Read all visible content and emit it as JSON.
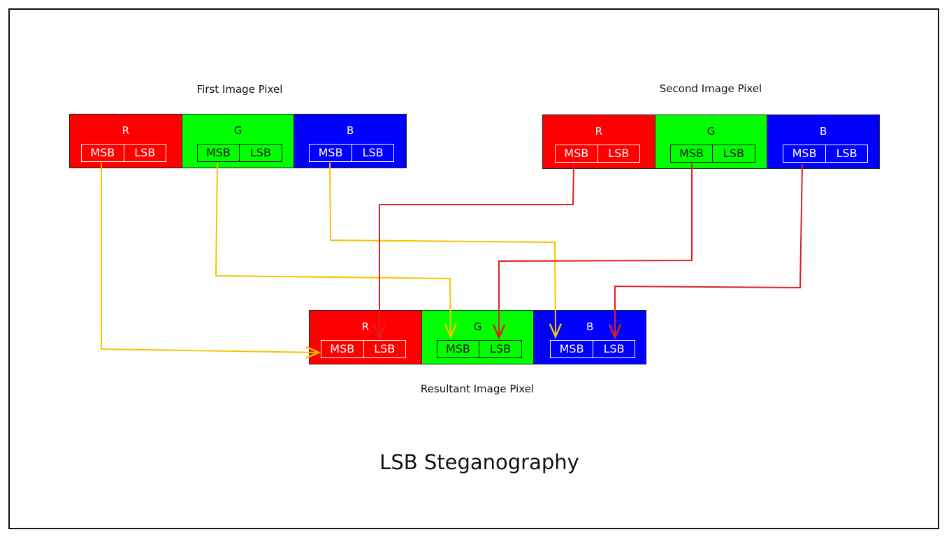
{
  "title": "LSB Steganography",
  "colors": {
    "red": "#ff0000",
    "green": "#00ff00",
    "blue": "#0000ff",
    "yellow_arrow": "#f5c400",
    "red_arrow": "#e02020"
  },
  "pixels": [
    {
      "id": "first",
      "label": "First Image Pixel",
      "channels": [
        {
          "name": "R",
          "msb": "MSB",
          "lsb": "LSB"
        },
        {
          "name": "G",
          "msb": "MSB",
          "lsb": "LSB"
        },
        {
          "name": "B",
          "msb": "MSB",
          "lsb": "LSB"
        }
      ]
    },
    {
      "id": "second",
      "label": "Second Image Pixel",
      "channels": [
        {
          "name": "R",
          "msb": "MSB",
          "lsb": "LSB"
        },
        {
          "name": "G",
          "msb": "MSB",
          "lsb": "LSB"
        },
        {
          "name": "B",
          "msb": "MSB",
          "lsb": "LSB"
        }
      ]
    },
    {
      "id": "result",
      "label": "Resultant Image Pixel",
      "channels": [
        {
          "name": "R",
          "msb": "MSB",
          "lsb": "LSB"
        },
        {
          "name": "G",
          "msb": "MSB",
          "lsb": "LSB"
        },
        {
          "name": "B",
          "msb": "MSB",
          "lsb": "LSB"
        }
      ]
    }
  ],
  "connections": [
    {
      "from": "first.R.MSB",
      "to": "result.R.MSB",
      "color": "yellow"
    },
    {
      "from": "first.G.MSB",
      "to": "result.G.MSB",
      "color": "yellow"
    },
    {
      "from": "first.B.MSB",
      "to": "result.B.MSB",
      "color": "yellow"
    },
    {
      "from": "second.R.MSB",
      "to": "result.R.LSB",
      "color": "red"
    },
    {
      "from": "second.G.MSB",
      "to": "result.G.LSB",
      "color": "red"
    },
    {
      "from": "second.B.MSB",
      "to": "result.B.LSB",
      "color": "red"
    }
  ]
}
